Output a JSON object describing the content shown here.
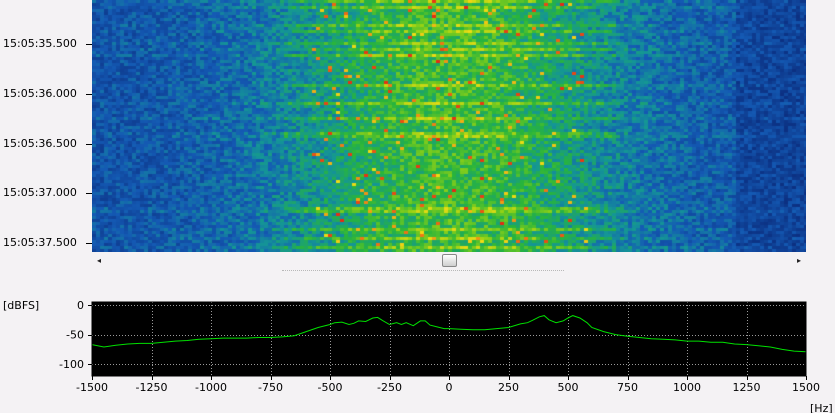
{
  "waterfall": {
    "time_labels": [
      "15:05:35.500",
      "15:05:36.000",
      "15:05:36.500",
      "15:05:37.000",
      "15:05:37.500"
    ]
  },
  "scrollbar": {
    "left_arrow": "◂",
    "right_arrow": "▸",
    "position": 0.5
  },
  "spectrum": {
    "y_unit": "[dBFS]",
    "x_unit": "[Hz]",
    "y_ticks": [
      0,
      -50,
      -100
    ],
    "y_tick_labels": [
      "0",
      "-50",
      "-100"
    ],
    "ylim": [
      -120,
      5
    ],
    "x_ticks": [
      -1500,
      -1250,
      -1000,
      -750,
      -500,
      -250,
      0,
      250,
      500,
      750,
      1000,
      1250,
      1500
    ],
    "x_tick_labels": [
      "-1500",
      "-1250",
      "-1000",
      "-750",
      "-500",
      "-250",
      "0",
      "250",
      "500",
      "750",
      "1000",
      "1250",
      "1500"
    ],
    "xlim": [
      -1500,
      1500
    ],
    "trace_color": "#00e000",
    "background": "#000000",
    "grid": true
  },
  "chart_data": {
    "type": "line",
    "x": [
      -1500,
      -1450,
      -1400,
      -1350,
      -1300,
      -1250,
      -1200,
      -1150,
      -1100,
      -1050,
      -1000,
      -950,
      -900,
      -850,
      -800,
      -750,
      -700,
      -650,
      -600,
      -550,
      -500,
      -480,
      -450,
      -420,
      -400,
      -380,
      -350,
      -320,
      -300,
      -280,
      -250,
      -220,
      -200,
      -180,
      -150,
      -120,
      -100,
      -80,
      -50,
      -20,
      0,
      50,
      100,
      150,
      200,
      250,
      300,
      330,
      350,
      380,
      400,
      420,
      450,
      480,
      500,
      520,
      550,
      580,
      600,
      650,
      700,
      750,
      800,
      850,
      900,
      950,
      1000,
      1050,
      1100,
      1150,
      1200,
      1250,
      1300,
      1350,
      1400,
      1450,
      1500
    ],
    "series": [
      {
        "values": [
          -67,
          -71,
          -68,
          -66,
          -65,
          -65,
          -63,
          -61,
          -60,
          -58,
          -57,
          -56,
          -56,
          -56,
          -55,
          -55,
          -54,
          -52,
          -45,
          -38,
          -33,
          -30,
          -29,
          -33,
          -31,
          -27,
          -28,
          -22,
          -21,
          -26,
          -33,
          -30,
          -33,
          -30,
          -35,
          -27,
          -27,
          -34,
          -37,
          -40,
          -40,
          -41,
          -42,
          -42,
          -40,
          -38,
          -32,
          -30,
          -26,
          -20,
          -18,
          -25,
          -30,
          -27,
          -22,
          -18,
          -22,
          -30,
          -38,
          -45,
          -50,
          -53,
          -55,
          -57,
          -58,
          -59,
          -61,
          -61,
          -63,
          -63,
          -66,
          -67,
          -69,
          -71,
          -75,
          -78,
          -79
        ]
      }
    ],
    "xlabel": "[Hz]",
    "ylabel": "[dBFS]",
    "xlim": [
      -1500,
      1500
    ],
    "ylim": [
      -120,
      5
    ],
    "grid": true
  }
}
